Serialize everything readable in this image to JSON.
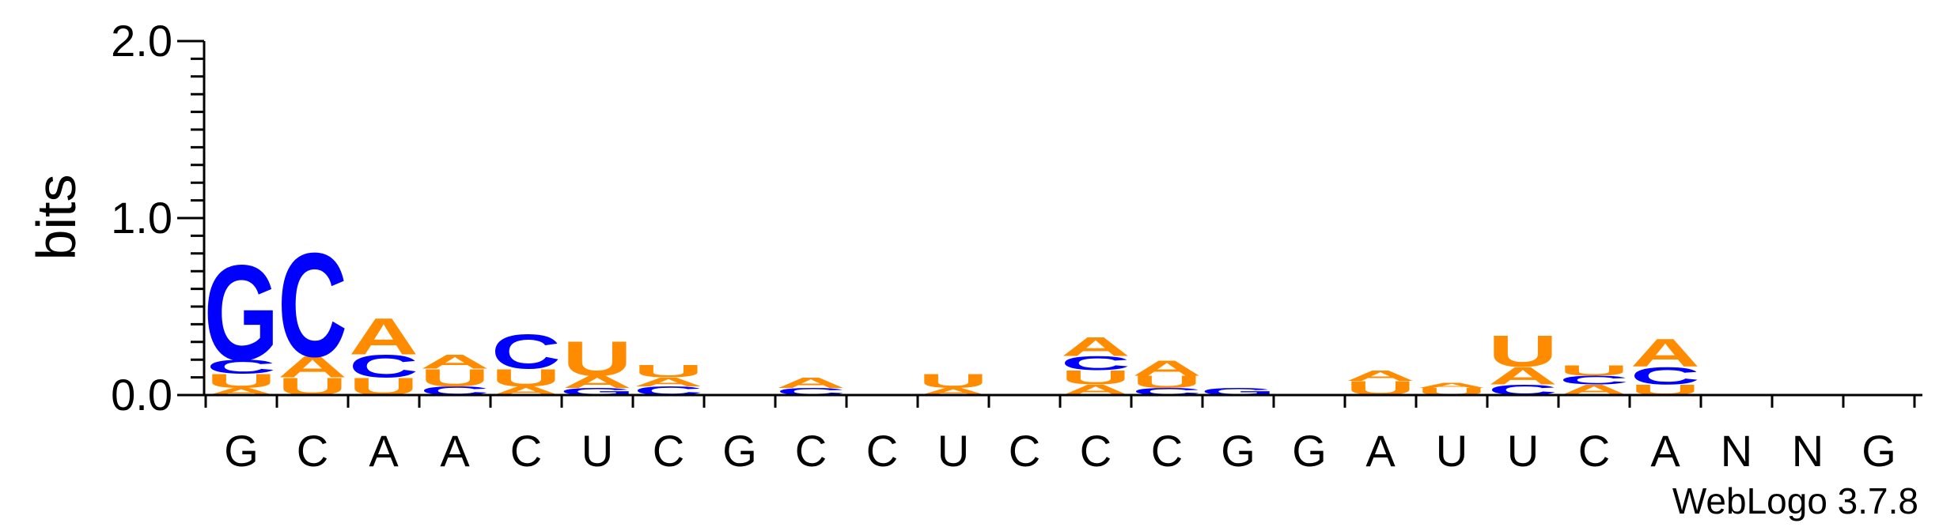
{
  "chart_data": {
    "type": "sequence-logo",
    "ylabel": "bits",
    "ylim": [
      0,
      2.0
    ],
    "yticks": [
      {
        "value": 0.0,
        "label": "0.0"
      },
      {
        "value": 1.0,
        "label": "1.0"
      },
      {
        "value": 2.0,
        "label": "2.0"
      }
    ],
    "xlabels": [
      "G",
      "C",
      "A",
      "A",
      "C",
      "U",
      "C",
      "G",
      "C",
      "C",
      "U",
      "C",
      "C",
      "C",
      "G",
      "G",
      "A",
      "U",
      "U",
      "C",
      "A",
      "N",
      "N",
      "G"
    ],
    "colors": {
      "A": "#FF8C00",
      "U": "#FF8C00",
      "C": "#0000FF",
      "G": "#0000FF"
    },
    "stacks": [
      [
        {
          "l": "A",
          "h": 0.04
        },
        {
          "l": "U",
          "h": 0.08
        },
        {
          "l": "C",
          "h": 0.08
        },
        {
          "l": "G",
          "h": 0.55
        }
      ],
      [
        {
          "l": "U",
          "h": 0.1
        },
        {
          "l": "A",
          "h": 0.12
        },
        {
          "l": "C",
          "h": 0.6
        }
      ],
      [
        {
          "l": "U",
          "h": 0.1
        },
        {
          "l": "C",
          "h": 0.13
        },
        {
          "l": "A",
          "h": 0.21
        }
      ],
      [
        {
          "l": "C",
          "h": 0.05
        },
        {
          "l": "U",
          "h": 0.1
        },
        {
          "l": "A",
          "h": 0.08
        }
      ],
      [
        {
          "l": "A",
          "h": 0.05
        },
        {
          "l": "U",
          "h": 0.1
        },
        {
          "l": "C",
          "h": 0.2
        }
      ],
      [
        {
          "l": "G",
          "h": 0.04
        },
        {
          "l": "A",
          "h": 0.07
        },
        {
          "l": "U",
          "h": 0.2
        }
      ],
      [
        {
          "l": "C",
          "h": 0.05
        },
        {
          "l": "A",
          "h": 0.05
        },
        {
          "l": "U",
          "h": 0.07
        }
      ],
      [],
      [
        {
          "l": "C",
          "h": 0.04
        },
        {
          "l": "A",
          "h": 0.06
        }
      ],
      [],
      [
        {
          "l": "A",
          "h": 0.04
        },
        {
          "l": "U",
          "h": 0.08
        }
      ],
      [],
      [
        {
          "l": "A",
          "h": 0.06
        },
        {
          "l": "U",
          "h": 0.08
        },
        {
          "l": "C",
          "h": 0.08
        },
        {
          "l": "A",
          "h": 0.11
        }
      ],
      [
        {
          "l": "C",
          "h": 0.04
        },
        {
          "l": "U",
          "h": 0.07
        },
        {
          "l": "A",
          "h": 0.09
        }
      ],
      [
        {
          "l": "G",
          "h": 0.04
        }
      ],
      [],
      [
        {
          "l": "U",
          "h": 0.08
        },
        {
          "l": "A",
          "h": 0.06
        }
      ],
      [
        {
          "l": "U",
          "h": 0.04
        },
        {
          "l": "A",
          "h": 0.03
        }
      ],
      [
        {
          "l": "C",
          "h": 0.06
        },
        {
          "l": "A",
          "h": 0.1
        },
        {
          "l": "U",
          "h": 0.18
        }
      ],
      [
        {
          "l": "A",
          "h": 0.06
        },
        {
          "l": "C",
          "h": 0.05
        },
        {
          "l": "U",
          "h": 0.06
        }
      ],
      [
        {
          "l": "U",
          "h": 0.06
        },
        {
          "l": "C",
          "h": 0.1
        },
        {
          "l": "A",
          "h": 0.16
        }
      ],
      [],
      [],
      []
    ],
    "footer": "WebLogo 3.7.8"
  }
}
